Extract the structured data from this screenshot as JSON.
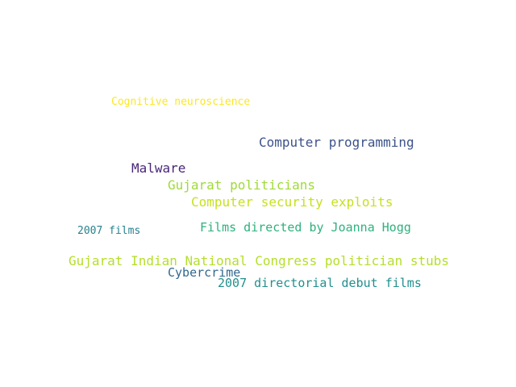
{
  "words": [
    {
      "text": "Cognitive neuroscience",
      "color": "#fde725"
    },
    {
      "text": "Computer programming",
      "color": "#3b528b"
    },
    {
      "text": "Malware",
      "color": "#482878"
    },
    {
      "text": "Gujarat politicians",
      "color": "#a0da39"
    },
    {
      "text": "Computer security exploits",
      "color": "#c8e020"
    },
    {
      "text": "Films directed by Joanna Hogg",
      "color": "#2db27d"
    },
    {
      "text": "2007 films",
      "color": "#26828e"
    },
    {
      "text": "Gujarat Indian National Congress politician stubs",
      "color": "#b5de2b"
    },
    {
      "text": "Cybercrime",
      "color": "#31688e"
    },
    {
      "text": "2007 directorial debut films",
      "color": "#21908d"
    }
  ]
}
